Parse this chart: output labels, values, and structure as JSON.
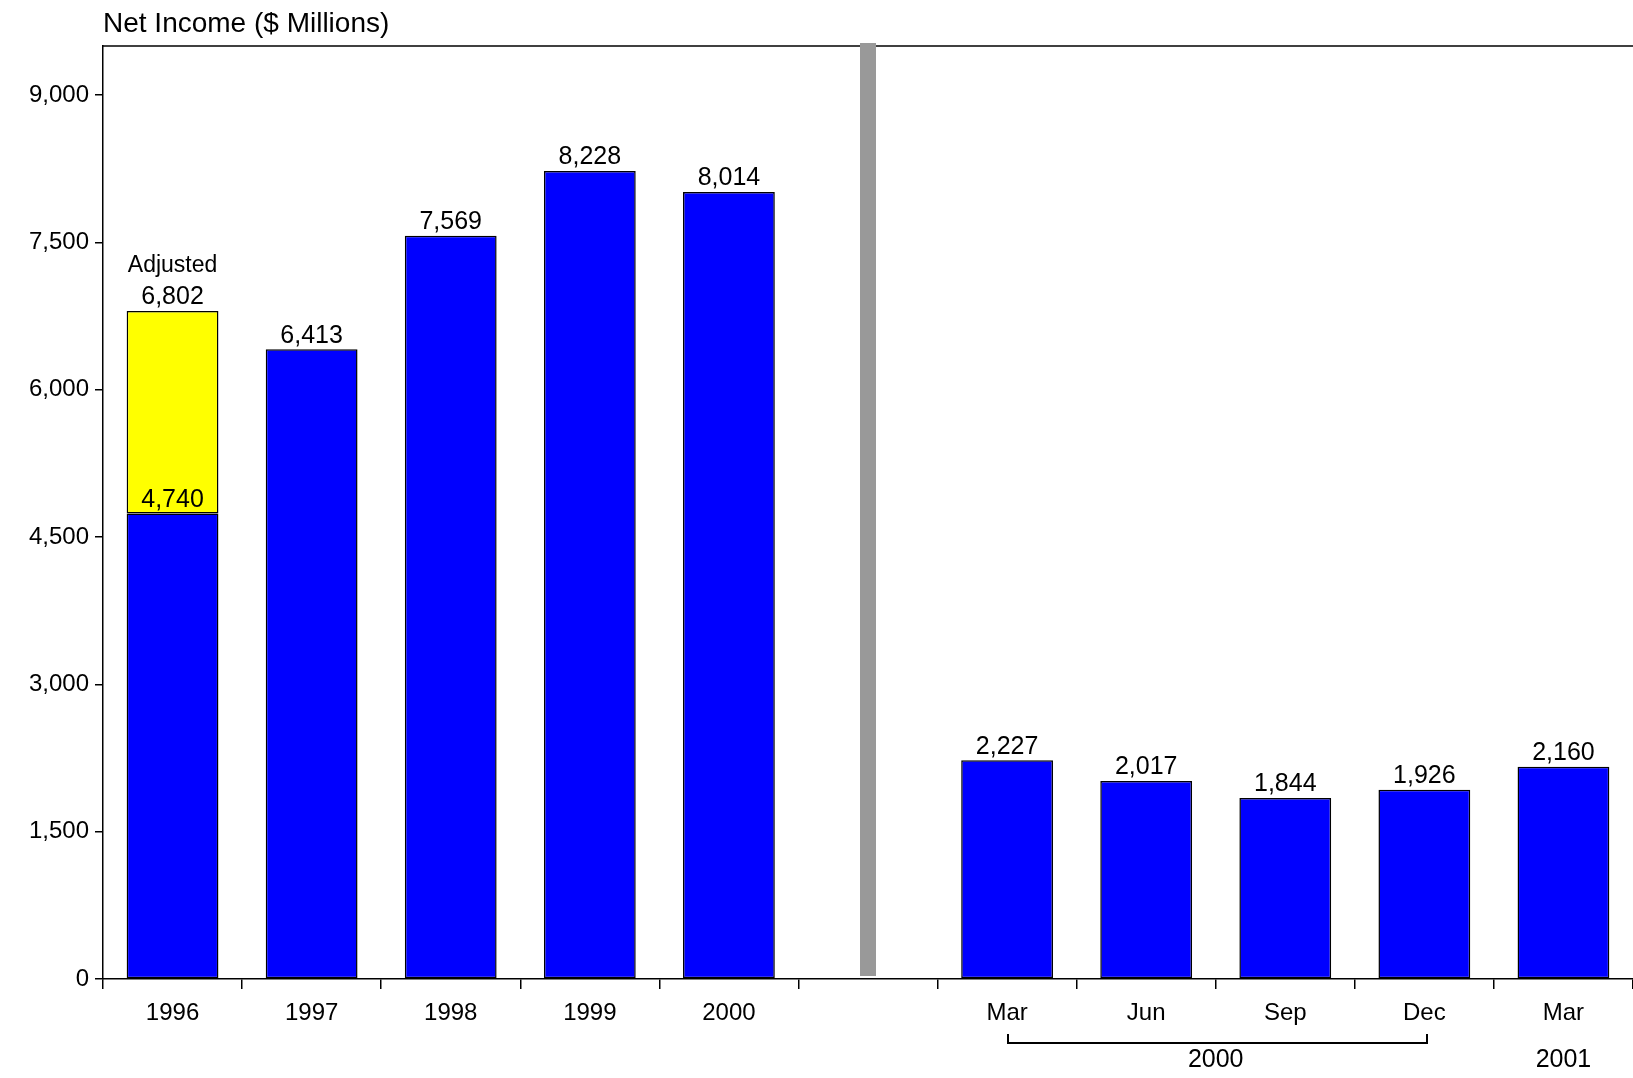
{
  "chart_data": {
    "type": "bar",
    "stacked": true,
    "ylabel": "Net Income ($ Millions)",
    "categories": [
      "1996",
      "1997",
      "1998",
      "1999",
      "2000",
      null,
      "Mar",
      "Jun",
      "Sep",
      "Dec",
      "Mar"
    ],
    "series": [
      {
        "color": "#0000ff",
        "values": [
          4740,
          6413,
          7569,
          8228,
          8014,
          null,
          2227,
          2017,
          1844,
          1926,
          2160
        ],
        "value_labels": [
          "4,740",
          null,
          null,
          null,
          null,
          null,
          null,
          null,
          null,
          null,
          null
        ]
      },
      {
        "color": "#ffff00",
        "values": [
          2062,
          null,
          null,
          null,
          null,
          null,
          null,
          null,
          null,
          null,
          null
        ],
        "value_labels": [
          null,
          null,
          null,
          null,
          null,
          null,
          null,
          null,
          null,
          null,
          null
        ]
      }
    ],
    "totals": [
      "6,802",
      "6,413",
      "7,569",
      "8,228",
      "8,014",
      null,
      "2,227",
      "2,017",
      "1,844",
      "1,926",
      "2,160"
    ],
    "ylim": [
      0,
      9500
    ],
    "yticks": [
      0,
      {
        "value": 1500,
        "label": "1,500"
      },
      {
        "value": 3000,
        "label": "3,000"
      },
      {
        "value": 4500,
        "label": "4,500"
      },
      {
        "value": 6000,
        "label": "6,000"
      },
      {
        "value": 7500,
        "label": "7,500"
      },
      {
        "value": 9000,
        "label": "9,000"
      }
    ],
    "grid": false,
    "annotations": [
      {
        "text": "Adjusted",
        "x": "1996",
        "y": 6802
      },
      "2000",
      "2001"
    ]
  }
}
